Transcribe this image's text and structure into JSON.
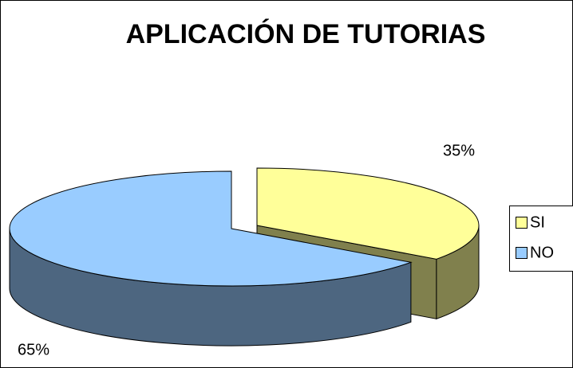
{
  "chart_data": {
    "type": "pie",
    "title": "APLICACIÓN DE  TUTORIAS",
    "categories": [
      "SI",
      "NO"
    ],
    "values": [
      35,
      65
    ],
    "value_labels": [
      "35%",
      "65%"
    ],
    "colors": [
      "#ffff99",
      "#99ccff"
    ],
    "legend": "right"
  }
}
